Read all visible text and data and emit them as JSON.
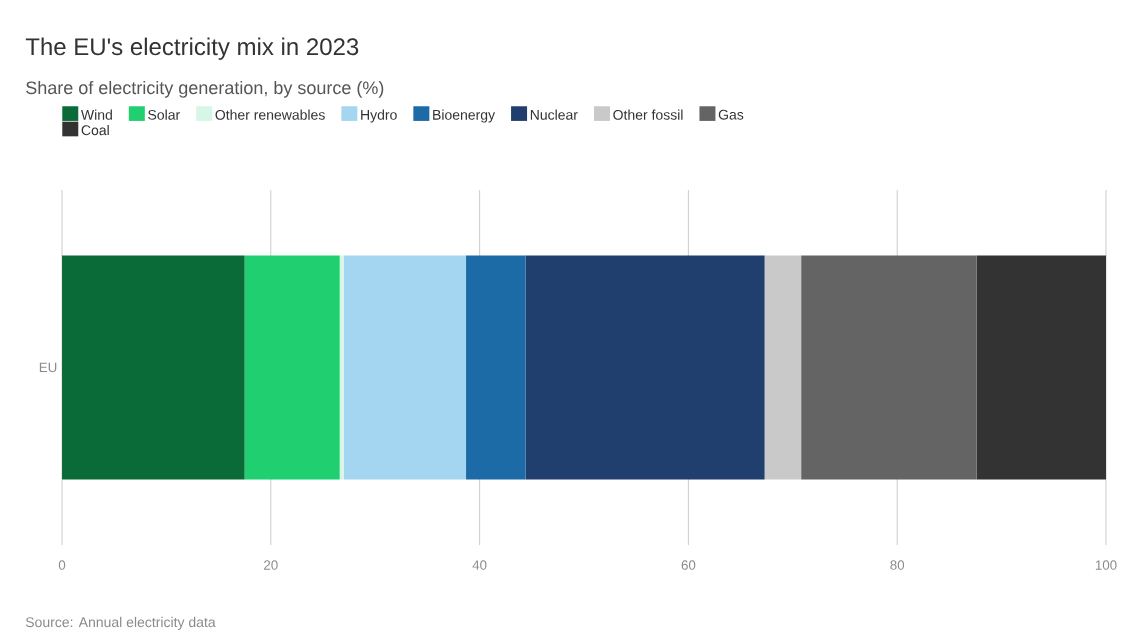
{
  "chart_data": {
    "type": "bar",
    "orientation": "horizontal",
    "stacked": true,
    "title": "The EU's electricity mix in 2023",
    "subtitle": "Share of electricity generation, by source (%)",
    "annotations": [
      "Source: Annual electricity data"
    ],
    "categories": [
      "EU"
    ],
    "series": [
      {
        "name": "Wind",
        "color": "#0b6b38",
        "values": [
          17.5
        ]
      },
      {
        "name": "Solar",
        "color": "#1fcf70",
        "values": [
          9.1
        ]
      },
      {
        "name": "Other renewables",
        "color": "#d8f6e6",
        "values": [
          0.4
        ]
      },
      {
        "name": "Hydro",
        "color": "#a4d6f2",
        "values": [
          11.7
        ]
      },
      {
        "name": "Bioenergy",
        "color": "#1c6aa6",
        "values": [
          5.7
        ]
      },
      {
        "name": "Nuclear",
        "color": "#203f6e",
        "values": [
          22.9
        ]
      },
      {
        "name": "Other fossil",
        "color": "#c9c9c9",
        "values": [
          3.5
        ]
      },
      {
        "name": "Gas",
        "color": "#646464",
        "values": [
          16.8
        ]
      },
      {
        "name": "Coal",
        "color": "#333333",
        "values": [
          12.4
        ]
      }
    ],
    "xlim": [
      0,
      100
    ],
    "xticks": [
      0,
      20,
      40,
      60,
      80,
      100
    ],
    "grid": "x",
    "legend": "top"
  }
}
